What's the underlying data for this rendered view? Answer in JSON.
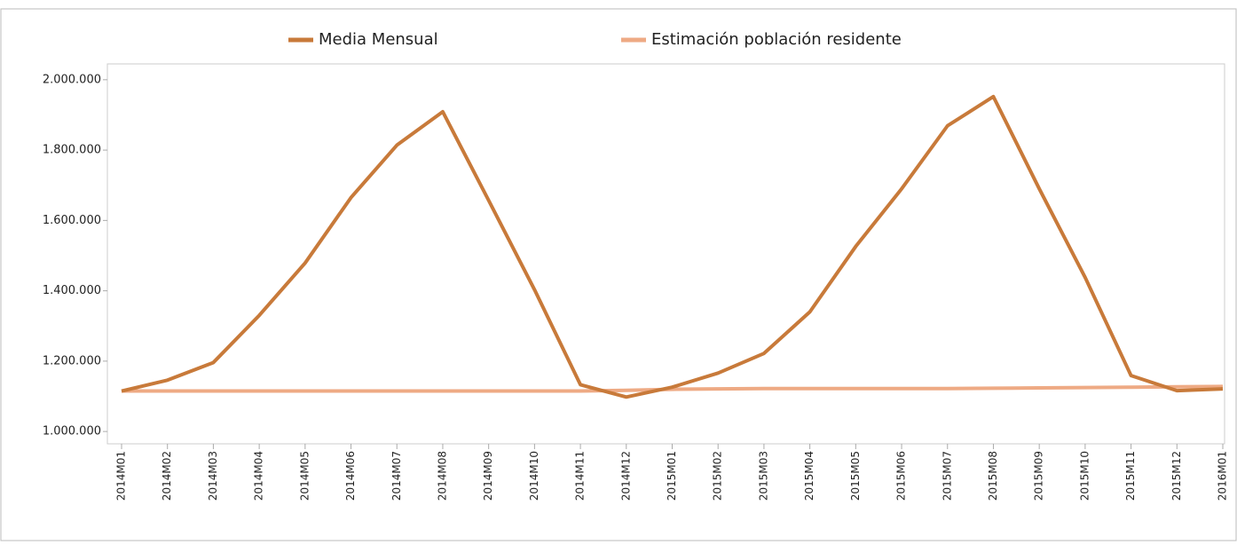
{
  "chart_data": {
    "type": "line",
    "categories": [
      "2014M01",
      "2014M02",
      "2014M03",
      "2014M04",
      "2014M05",
      "2014M06",
      "2014M07",
      "2014M08",
      "2014M09",
      "2014M10",
      "2014M11",
      "2014M12",
      "2015M01",
      "2015M02",
      "2015M03",
      "2015M04",
      "2015M05",
      "2015M06",
      "2015M07",
      "2015M08",
      "2015M09",
      "2015M10",
      "2015M11",
      "2015M12",
      "2016M01"
    ],
    "series": [
      {
        "name": "Media Mensual",
        "color": "#c87a3a",
        "values": [
          1115000,
          1146000,
          1196000,
          1330000,
          1479000,
          1665000,
          1814000,
          1909000,
          1657000,
          1403000,
          1133000,
          1098000,
          1126000,
          1166000,
          1222000,
          1340000,
          1526000,
          1690000,
          1869000,
          1952000,
          1690000,
          1438000,
          1159000,
          1116000,
          1121000
        ]
      },
      {
        "name": "Estimación población residente",
        "color": "#eeaa84",
        "values": [
          1115000,
          1115000,
          1115000,
          1115000,
          1115000,
          1115000,
          1115000,
          1115000,
          1115000,
          1115000,
          1115000,
          1117000,
          1120000,
          1121000,
          1122000,
          1122000,
          1122000,
          1122000,
          1122000,
          1123000,
          1124000,
          1125000,
          1126000,
          1127000,
          1128000
        ]
      }
    ],
    "ylim": [
      965000,
      2045000
    ],
    "yticks": [
      {
        "value": 1000000,
        "label": "1.000.000"
      },
      {
        "value": 1200000,
        "label": "1.200.000"
      },
      {
        "value": 1400000,
        "label": "1.400.000"
      },
      {
        "value": 1600000,
        "label": "1.600.000"
      },
      {
        "value": 1800000,
        "label": "1.800.000"
      },
      {
        "value": 2000000,
        "label": "2.000.000"
      }
    ],
    "legend": "top"
  }
}
